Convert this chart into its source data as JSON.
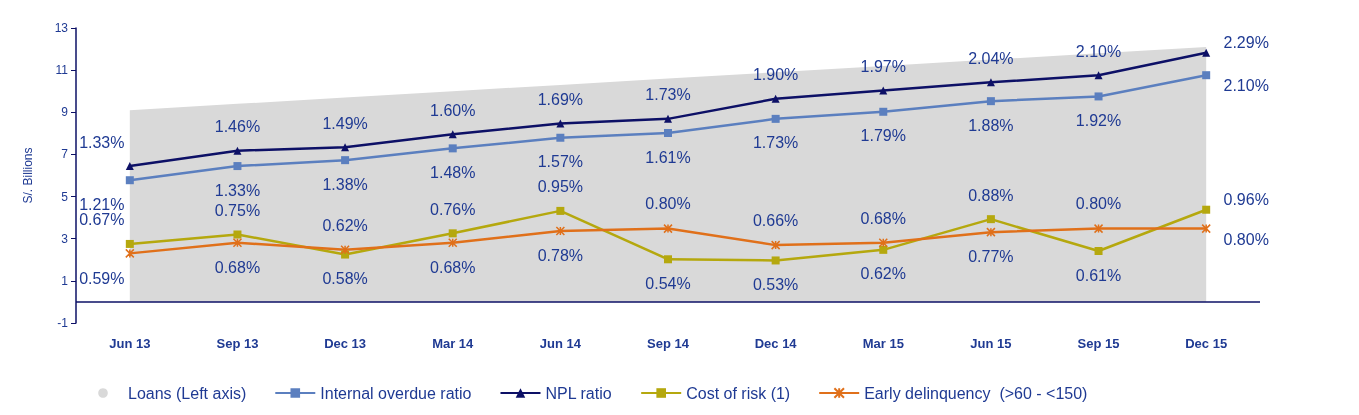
{
  "chart_data": {
    "type": "line",
    "ylabel": "S/. Billions",
    "categories": [
      "Jun 13",
      "Sep 13",
      "Dec 13",
      "Mar 14",
      "Jun 14",
      "Sep 14",
      "Dec 14",
      "Mar 15",
      "Jun 15",
      "Sep 15",
      "Dec 15"
    ],
    "ylim": [
      -1,
      13
    ],
    "yticks": [
      -1,
      1,
      3,
      5,
      7,
      9,
      11,
      13
    ],
    "grid": false,
    "legend": "bottom",
    "ref_lines": [
      {
        "axis": "y",
        "value": 0,
        "color": "#0d1066"
      }
    ],
    "series": [
      {
        "name": "Loans (Left axis)",
        "type": "area",
        "axis": "y",
        "color": "#d9d9d9",
        "values": [
          9.1,
          9.4,
          9.7,
          10.0,
          10.3,
          10.6,
          10.9,
          11.2,
          11.5,
          11.8,
          12.1
        ]
      },
      {
        "name": "Internal overdue ratio",
        "axis": "y2",
        "marker": "square",
        "color": "#5b7fbf",
        "values": [
          1.21,
          1.33,
          1.38,
          1.48,
          1.57,
          1.61,
          1.73,
          1.79,
          1.88,
          1.92,
          2.1
        ],
        "value_labels": [
          "1.21%",
          "1.33%",
          "1.38%",
          "1.48%",
          "1.57%",
          "1.61%",
          "1.73%",
          "1.79%",
          "1.88%",
          "1.92%",
          "2.10%"
        ]
      },
      {
        "name": "NPL ratio",
        "axis": "y2",
        "marker": "triangle",
        "color": "#0d1066",
        "values": [
          1.33,
          1.46,
          1.49,
          1.6,
          1.69,
          1.73,
          1.9,
          1.97,
          2.04,
          2.1,
          2.29
        ],
        "value_labels": [
          "1.33%",
          "1.46%",
          "1.49%",
          "1.60%",
          "1.69%",
          "1.73%",
          "1.90%",
          "1.97%",
          "2.04%",
          "2.10%",
          "2.29%"
        ]
      },
      {
        "name": "Cost of risk (1)",
        "axis": "y2",
        "marker": "square",
        "color": "#b5a80e",
        "values": [
          0.67,
          0.75,
          0.58,
          0.76,
          0.95,
          0.54,
          0.53,
          0.62,
          0.88,
          0.61,
          0.96
        ],
        "value_labels": [
          "0.67%",
          "0.75%",
          "0.58%",
          "0.76%",
          "0.95%",
          "0.54%",
          "0.53%",
          "0.62%",
          "0.88%",
          "0.61%",
          "0.96%"
        ]
      },
      {
        "name": "Early delinquency  (>60 - <150)",
        "axis": "y2",
        "marker": "cross",
        "color": "#e0701a",
        "values": [
          0.59,
          0.68,
          0.62,
          0.68,
          0.78,
          0.8,
          0.66,
          0.68,
          0.77,
          0.8,
          0.8
        ],
        "value_labels": [
          "0.59%",
          "0.68%",
          "0.62%",
          "0.68%",
          "0.78%",
          "0.80%",
          "0.66%",
          "0.68%",
          "0.77%",
          "0.80%",
          "0.80%"
        ]
      }
    ]
  }
}
